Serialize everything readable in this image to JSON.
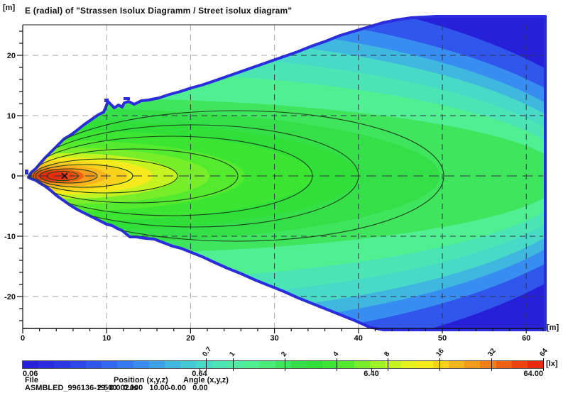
{
  "title": "E (radial) of \"Strassen Isolux Diagramm / Street isolux diagram\"",
  "axes": {
    "y_unit": "[m]",
    "x_unit": "[m]",
    "x_tick_labels": [
      "0",
      "10",
      "20",
      "30",
      "40",
      "50",
      "60"
    ],
    "x_tick_meters": [
      0,
      10,
      20,
      30,
      40,
      50,
      60
    ],
    "y_tick_labels": [
      "20",
      "10",
      "0",
      "-10",
      "-20"
    ],
    "y_tick_meters": [
      20,
      10,
      0,
      -10,
      -20
    ]
  },
  "colorbar": {
    "unit": "[lx]",
    "min_label": "0.06",
    "mid_label_1": "0.64",
    "mid_label_2": "6.40",
    "max_label": "64.00",
    "tick_values": [
      "0.7",
      "1",
      "2",
      "4",
      "8",
      "16",
      "32",
      "64"
    ],
    "tick_numbers": [
      0.7,
      1,
      2,
      4,
      8,
      16,
      32,
      64
    ],
    "range_lx": [
      0.06,
      64.0
    ],
    "scale": "log",
    "palette": [
      "#2621D8",
      "#2A2CDE",
      "#2C38E2",
      "#2F47E8",
      "#3156EC",
      "#3368F0",
      "#357AF2",
      "#388EF0",
      "#3BA2E8",
      "#3FB7DF",
      "#44CAD4",
      "#48DAC6",
      "#4BE5B5",
      "#4EEBA3",
      "#50EF91",
      "#4AEC77",
      "#3FE55D",
      "#35DF48",
      "#30E039",
      "#3BE531",
      "#54EA2D",
      "#78EE2A",
      "#9FF127",
      "#C5F322",
      "#E5F21E",
      "#F5EA1B",
      "#F7D11C",
      "#F7B61D",
      "#F59B1B",
      "#F37E17",
      "#F06013",
      "#EC440F",
      "#E82B0B"
    ]
  },
  "footer": {
    "file_label": "File",
    "position_label": "Position (x,y,z)",
    "angle_label": "Angle (x,y,z)",
    "file_value": "ASMBLED_996136-19_0.002.ls",
    "position_value": "2.500   0.000   10.00",
    "angle_value": "-0.00   0.00"
  },
  "chart_data": {
    "type": "heatmap",
    "title": "E (radial) of \"Strassen Isolux Diagramm / Street isolux diagram\"",
    "xlabel": "[m]",
    "ylabel": "[m]",
    "xlim": [
      0,
      62
    ],
    "ylim": [
      -25,
      25
    ],
    "grid": true,
    "colorbar_range_lx": [
      0.06,
      64.0
    ],
    "colorbar_scale": "log",
    "colorbar_tick_lx": [
      0.7,
      1,
      2,
      4,
      8,
      16,
      32,
      64
    ],
    "contour_levels_lx": [
      32,
      16,
      8,
      4,
      2,
      1,
      0.7
    ],
    "contour_right_extent_m": [
      8.9,
      13.1,
      18.5,
      25.7,
      34.6,
      40.0,
      50.0
    ],
    "peak_marker_position_m": [
      5.0,
      0.0
    ],
    "luminaire_position_xyz_m": [
      2.5,
      0.0,
      10.0
    ],
    "luminaire_angle_xyz_deg": [
      -0.0,
      0.0
    ],
    "beam_description": "Light cone starts near x=2 m, y=0 and widens to the right, reaching full ±25 m height at x≈62 m; peak illuminance (orange/red, ~64 lx) near x=5 m on axis, falling logarithmically to 0.06 lx (blue) at the cone edges."
  }
}
